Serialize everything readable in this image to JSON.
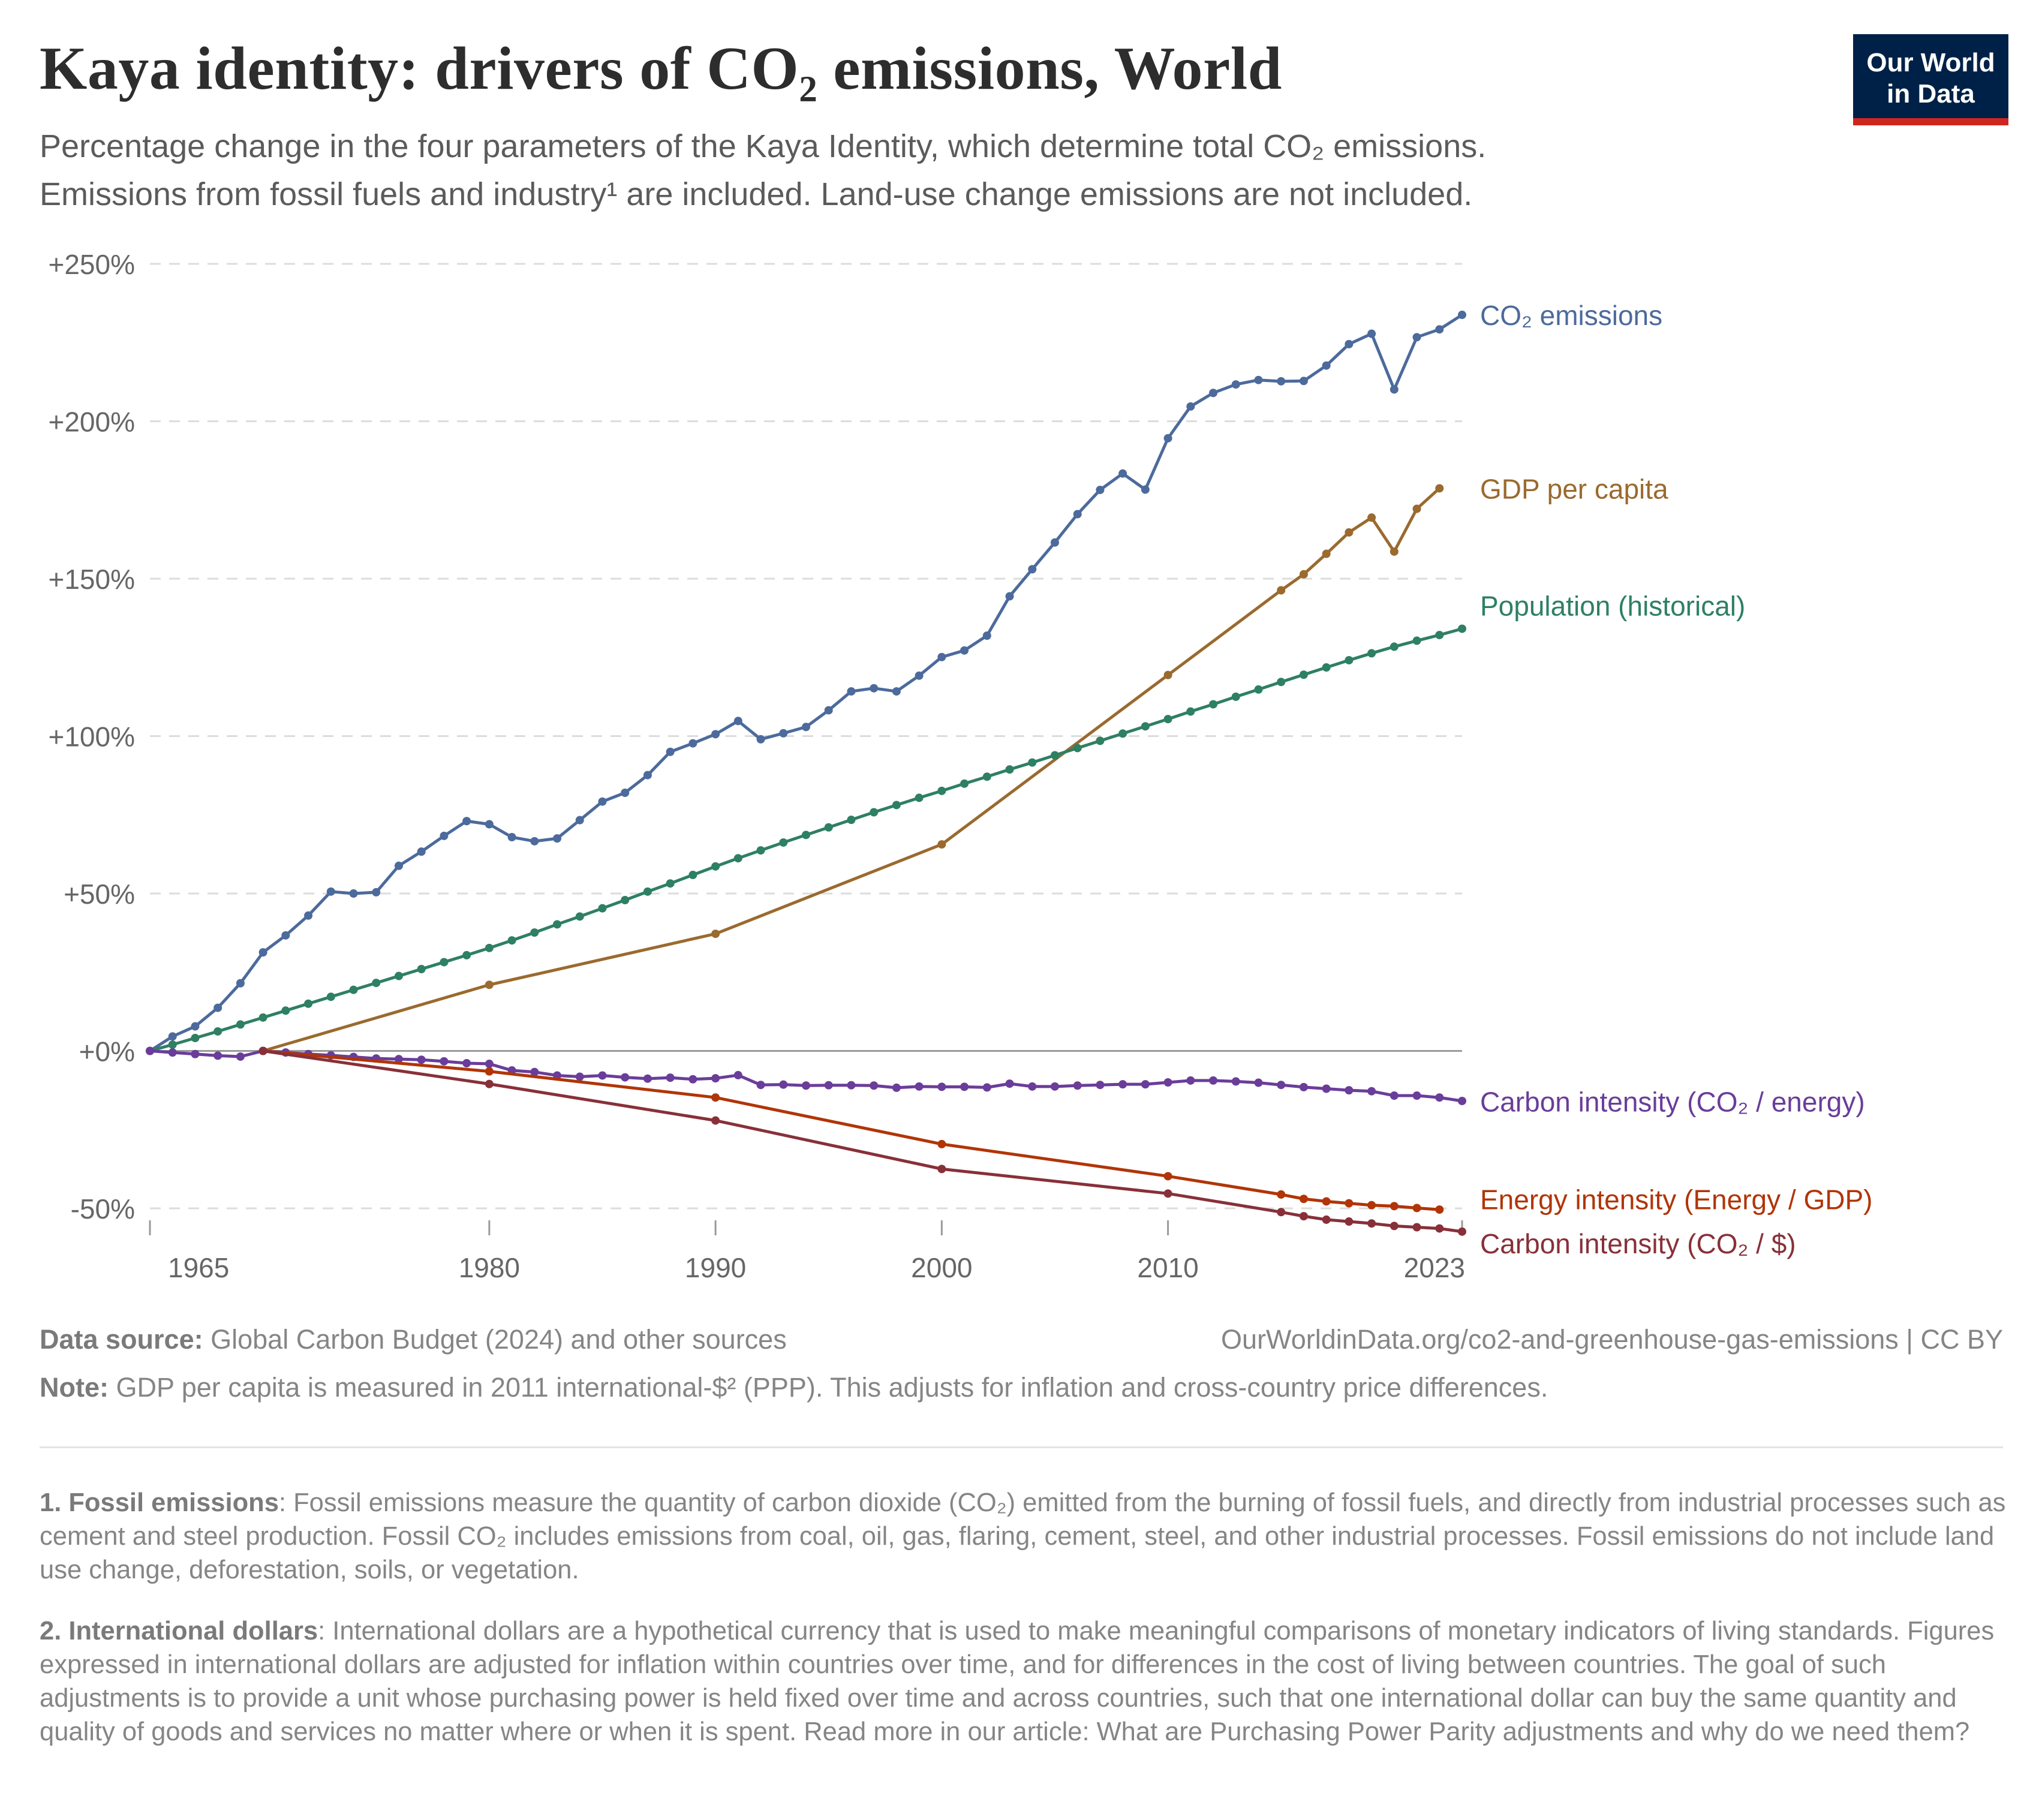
{
  "header": {
    "title": "Kaya identity: drivers of CO₂ emissions, World",
    "subtitle_line1": "Percentage change in the four parameters of the Kaya Identity, which determine total CO₂ emissions.",
    "subtitle_line2": "Emissions from fossil fuels and industry¹ are included. Land-use change emissions are not included.",
    "logo_line1": "Our World",
    "logo_line2": "in Data"
  },
  "footer": {
    "source_label": "Data source:",
    "source_text": "Global Carbon Budget (2024) and other sources",
    "url_license": "OurWorldinData.org/co2-and-greenhouse-gas-emissions | CC BY",
    "note_label": "Note:",
    "note_text": "GDP per capita is measured in 2011 international-$² (PPP). This adjusts for inflation and cross-country price differences.",
    "fn1_label": "1. Fossil emissions",
    "fn1_text": ": Fossil emissions measure the quantity of carbon dioxide (CO₂) emitted from the burning of fossil fuels, and directly from industrial processes such as cement and steel production. Fossil CO₂ includes emissions from coal, oil, gas, flaring, cement, steel, and other industrial processes. Fossil emissions do not include land use change, deforestation, soils, or vegetation.",
    "fn2_label": "2. International dollars",
    "fn2_text": ": International dollars are a hypothetical currency that is used to make meaningful comparisons of monetary indicators of living standards. Figures expressed in international dollars are adjusted for inflation within countries over time, and for differences in the cost of living between countries. The goal of such adjustments is to provide a unit whose purchasing power is held fixed over time and across countries, such that one international dollar can buy the same quantity and quality of goods and services no matter where or when it is spent. Read more in our article: What are Purchasing Power Parity adjustments and why do we need them?"
  },
  "chart_data": {
    "type": "line",
    "xlim": [
      1965,
      2023
    ],
    "ylim": [
      -50,
      250
    ],
    "y_ticks": [
      -50,
      0,
      50,
      100,
      150,
      200,
      250
    ],
    "y_tick_labels": [
      "-50%",
      "+0%",
      "+50%",
      "+100%",
      "+150%",
      "+200%",
      "+250%"
    ],
    "x_ticks": [
      1965,
      1980,
      1990,
      2000,
      2010,
      2023
    ],
    "x_tick_labels": [
      "1965",
      "1980",
      "1990",
      "2000",
      "2010",
      "2023"
    ],
    "grid": "horizontal dashed",
    "legend": "inline labels at right end of lines",
    "series": [
      {
        "name": "CO₂ emissions",
        "color": "#4c6a9c",
        "x": [
          1965,
          1966,
          1967,
          1968,
          1969,
          1970,
          1971,
          1972,
          1973,
          1974,
          1975,
          1976,
          1977,
          1978,
          1979,
          1980,
          1981,
          1982,
          1983,
          1984,
          1985,
          1986,
          1987,
          1988,
          1989,
          1990,
          1991,
          1992,
          1993,
          1994,
          1995,
          1996,
          1997,
          1998,
          1999,
          2000,
          2001,
          2002,
          2003,
          2004,
          2005,
          2006,
          2007,
          2008,
          2009,
          2010,
          2011,
          2012,
          2013,
          2014,
          2015,
          2016,
          2017,
          2018,
          2019,
          2020,
          2021,
          2022,
          2023
        ],
        "y": [
          0,
          4.6,
          7.8,
          13.7,
          21.5,
          31.3,
          36.7,
          43,
          50.6,
          50,
          50.4,
          58.8,
          63.3,
          68.3,
          73,
          72,
          67.9,
          66.6,
          67.5,
          73.3,
          79.2,
          82,
          87.6,
          95,
          97.7,
          100.6,
          104.8,
          99,
          100.9,
          102.9,
          108.2,
          114.2,
          115.2,
          114.2,
          119.2,
          125.1,
          127.2,
          131.9,
          144.4,
          153,
          161.5,
          170.5,
          178.2,
          183.4,
          178.3,
          194.6,
          204.7,
          209,
          211.7,
          213.1,
          212.7,
          212.8,
          217.7,
          224.5,
          227.8,
          210.1,
          226.7,
          229.2,
          233.8
        ]
      },
      {
        "name": "GDP per capita",
        "color": "#9a6a2e",
        "x": [
          1970,
          1980,
          1990,
          2000,
          2010,
          2015,
          2016,
          2017,
          2018,
          2019,
          2020,
          2021,
          2022
        ],
        "y": [
          0,
          21,
          37.2,
          65.6,
          119.4,
          146.3,
          151.4,
          157.9,
          164.7,
          169.4,
          158.6,
          172.2,
          178.7
        ]
      },
      {
        "name": "Population (historical)",
        "color": "#2e8062",
        "x": [
          1965,
          1966,
          1967,
          1968,
          1969,
          1970,
          1971,
          1972,
          1973,
          1974,
          1975,
          1976,
          1977,
          1978,
          1979,
          1980,
          1981,
          1982,
          1983,
          1984,
          1985,
          1986,
          1987,
          1988,
          1989,
          1990,
          1991,
          1992,
          1993,
          1994,
          1995,
          1996,
          1997,
          1998,
          1999,
          2000,
          2001,
          2002,
          2003,
          2004,
          2005,
          2006,
          2007,
          2008,
          2009,
          2010,
          2011,
          2012,
          2013,
          2014,
          2015,
          2016,
          2017,
          2018,
          2019,
          2020,
          2021,
          2022,
          2023
        ],
        "y": [
          0,
          2,
          4.1,
          6.2,
          8.4,
          10.6,
          12.8,
          15,
          17.2,
          19.4,
          21.6,
          23.8,
          26,
          28.2,
          30.4,
          32.7,
          35.1,
          37.6,
          40.2,
          42.7,
          45.3,
          47.9,
          50.6,
          53.2,
          55.9,
          58.6,
          61.2,
          63.7,
          66.2,
          68.6,
          71,
          73.4,
          75.8,
          78.1,
          80.4,
          82.6,
          84.9,
          87.1,
          89.4,
          91.6,
          93.9,
          96.2,
          98.5,
          100.8,
          103.1,
          105.4,
          107.8,
          110.1,
          112.5,
          114.8,
          117.2,
          119.5,
          121.8,
          124.1,
          126.3,
          128.4,
          130.3,
          132.1,
          134.1
        ]
      },
      {
        "name": "Carbon intensity (CO₂ / energy)",
        "color": "#6a3d9a",
        "x": [
          1965,
          1966,
          1967,
          1968,
          1969,
          1970,
          1971,
          1972,
          1973,
          1974,
          1975,
          1976,
          1977,
          1978,
          1979,
          1980,
          1981,
          1982,
          1983,
          1984,
          1985,
          1986,
          1987,
          1988,
          1989,
          1990,
          1991,
          1992,
          1993,
          1994,
          1995,
          1996,
          1997,
          1998,
          1999,
          2000,
          2001,
          2002,
          2003,
          2004,
          2005,
          2006,
          2007,
          2008,
          2009,
          2010,
          2011,
          2012,
          2013,
          2014,
          2015,
          2016,
          2017,
          2018,
          2019,
          2020,
          2021,
          2022,
          2023
        ],
        "y": [
          0,
          -0.5,
          -1,
          -1.5,
          -1.8,
          0,
          -0.5,
          -1,
          -1.4,
          -1.9,
          -2.4,
          -2.6,
          -2.8,
          -3.3,
          -3.9,
          -4.1,
          -6.2,
          -6.7,
          -7.8,
          -8.2,
          -7.8,
          -8.4,
          -8.8,
          -8.5,
          -9,
          -8.7,
          -7.7,
          -10.8,
          -10.7,
          -11,
          -10.9,
          -10.9,
          -11,
          -11.7,
          -11.3,
          -11.4,
          -11.4,
          -11.6,
          -10.4,
          -11.3,
          -11.3,
          -11,
          -10.8,
          -10.6,
          -10.6,
          -10,
          -9.4,
          -9.4,
          -9.7,
          -10.1,
          -10.8,
          -11.5,
          -12,
          -12.5,
          -12.8,
          -14.2,
          -14.2,
          -14.8,
          -15.9
        ]
      },
      {
        "name": "Energy intensity (Energy / GDP)",
        "color": "#b13507",
        "x": [
          1970,
          1980,
          1990,
          2000,
          2010,
          2015,
          2016,
          2017,
          2018,
          2019,
          2020,
          2021,
          2022
        ],
        "y": [
          0,
          -6.5,
          -14.8,
          -29.6,
          -39.8,
          -45.6,
          -47,
          -47.8,
          -48.4,
          -49,
          -49.3,
          -49.9,
          -50.4
        ]
      },
      {
        "name": "Carbon intensity (CO₂ / $)",
        "color": "#883039",
        "x": [
          1970,
          1980,
          1990,
          2000,
          2010,
          2015,
          2016,
          2017,
          2018,
          2019,
          2020,
          2021,
          2022,
          2023
        ],
        "y": [
          0,
          -10.5,
          -22.1,
          -37.5,
          -45.3,
          -51.2,
          -52.5,
          -53.6,
          -54.2,
          -54.8,
          -55.6,
          -56,
          -56.4,
          -57.4
        ]
      }
    ]
  }
}
